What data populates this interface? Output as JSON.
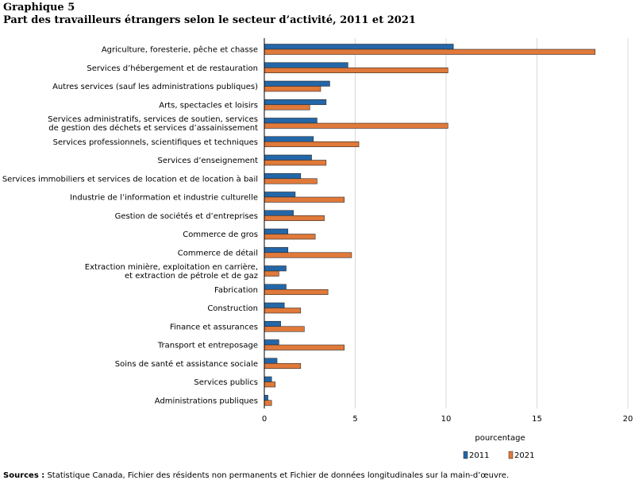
{
  "figure_label": "Graphique 5",
  "title": "Part des travailleurs étrangers selon le secteur d’activité, 2011 et 2021",
  "source_label": "Sources :",
  "source_text": "Statistique Canada, Fichier des résidents non permanents et Fichier de données longitudinales sur la main-d’œuvre.",
  "colors": {
    "s2011": "#2467a8",
    "s2021": "#e0793a",
    "grid": "#d9d9d9",
    "axis": "#000000"
  },
  "chart_data": {
    "type": "bar",
    "orientation": "horizontal",
    "title": "Part des travailleurs étrangers selon le secteur d’activité, 2011 et 2021",
    "xlabel": "pourcentage",
    "ylabel": "",
    "xlim": [
      0,
      20
    ],
    "xticks": [
      0,
      5,
      10,
      15,
      20
    ],
    "grid": true,
    "legend": "bottom-right",
    "categories": [
      [
        "Agriculture, foresterie, pêche et chasse"
      ],
      [
        "Services d’hébergement et de restauration"
      ],
      [
        "Autres services (sauf les administrations publiques)"
      ],
      [
        "Arts, spectacles et loisirs"
      ],
      [
        "Services administratifs, services de soutien, services",
        "de gestion des déchets et services d’assainissement"
      ],
      [
        "Services professionnels, scientifiques et techniques"
      ],
      [
        "Services d’enseignement"
      ],
      [
        "Services immobiliers et services de location et de location à bail"
      ],
      [
        "Industrie de l’information et industrie culturelle"
      ],
      [
        "Gestion de sociétés et d’entreprises"
      ],
      [
        "Commerce de gros"
      ],
      [
        "Commerce de détail"
      ],
      [
        "Extraction minière, exploitation en carrière,",
        "et extraction de pétrole et de gaz"
      ],
      [
        "Fabrication"
      ],
      [
        "Construction"
      ],
      [
        "Finance et assurances"
      ],
      [
        "Transport et entreposage"
      ],
      [
        "Soins de santé et assistance sociale"
      ],
      [
        "Services publics"
      ],
      [
        "Administrations publiques"
      ]
    ],
    "series": [
      {
        "name": "2011",
        "values": [
          10.4,
          4.6,
          3.6,
          3.4,
          2.9,
          2.7,
          2.6,
          2.0,
          1.7,
          1.6,
          1.3,
          1.3,
          1.2,
          1.2,
          1.1,
          0.9,
          0.8,
          0.7,
          0.4,
          0.2
        ]
      },
      {
        "name": "2021",
        "values": [
          18.2,
          10.1,
          3.1,
          2.5,
          10.1,
          5.2,
          3.4,
          2.9,
          4.4,
          3.3,
          2.8,
          4.8,
          0.8,
          3.5,
          2.0,
          2.2,
          4.4,
          2.0,
          0.6,
          0.4
        ]
      }
    ]
  }
}
